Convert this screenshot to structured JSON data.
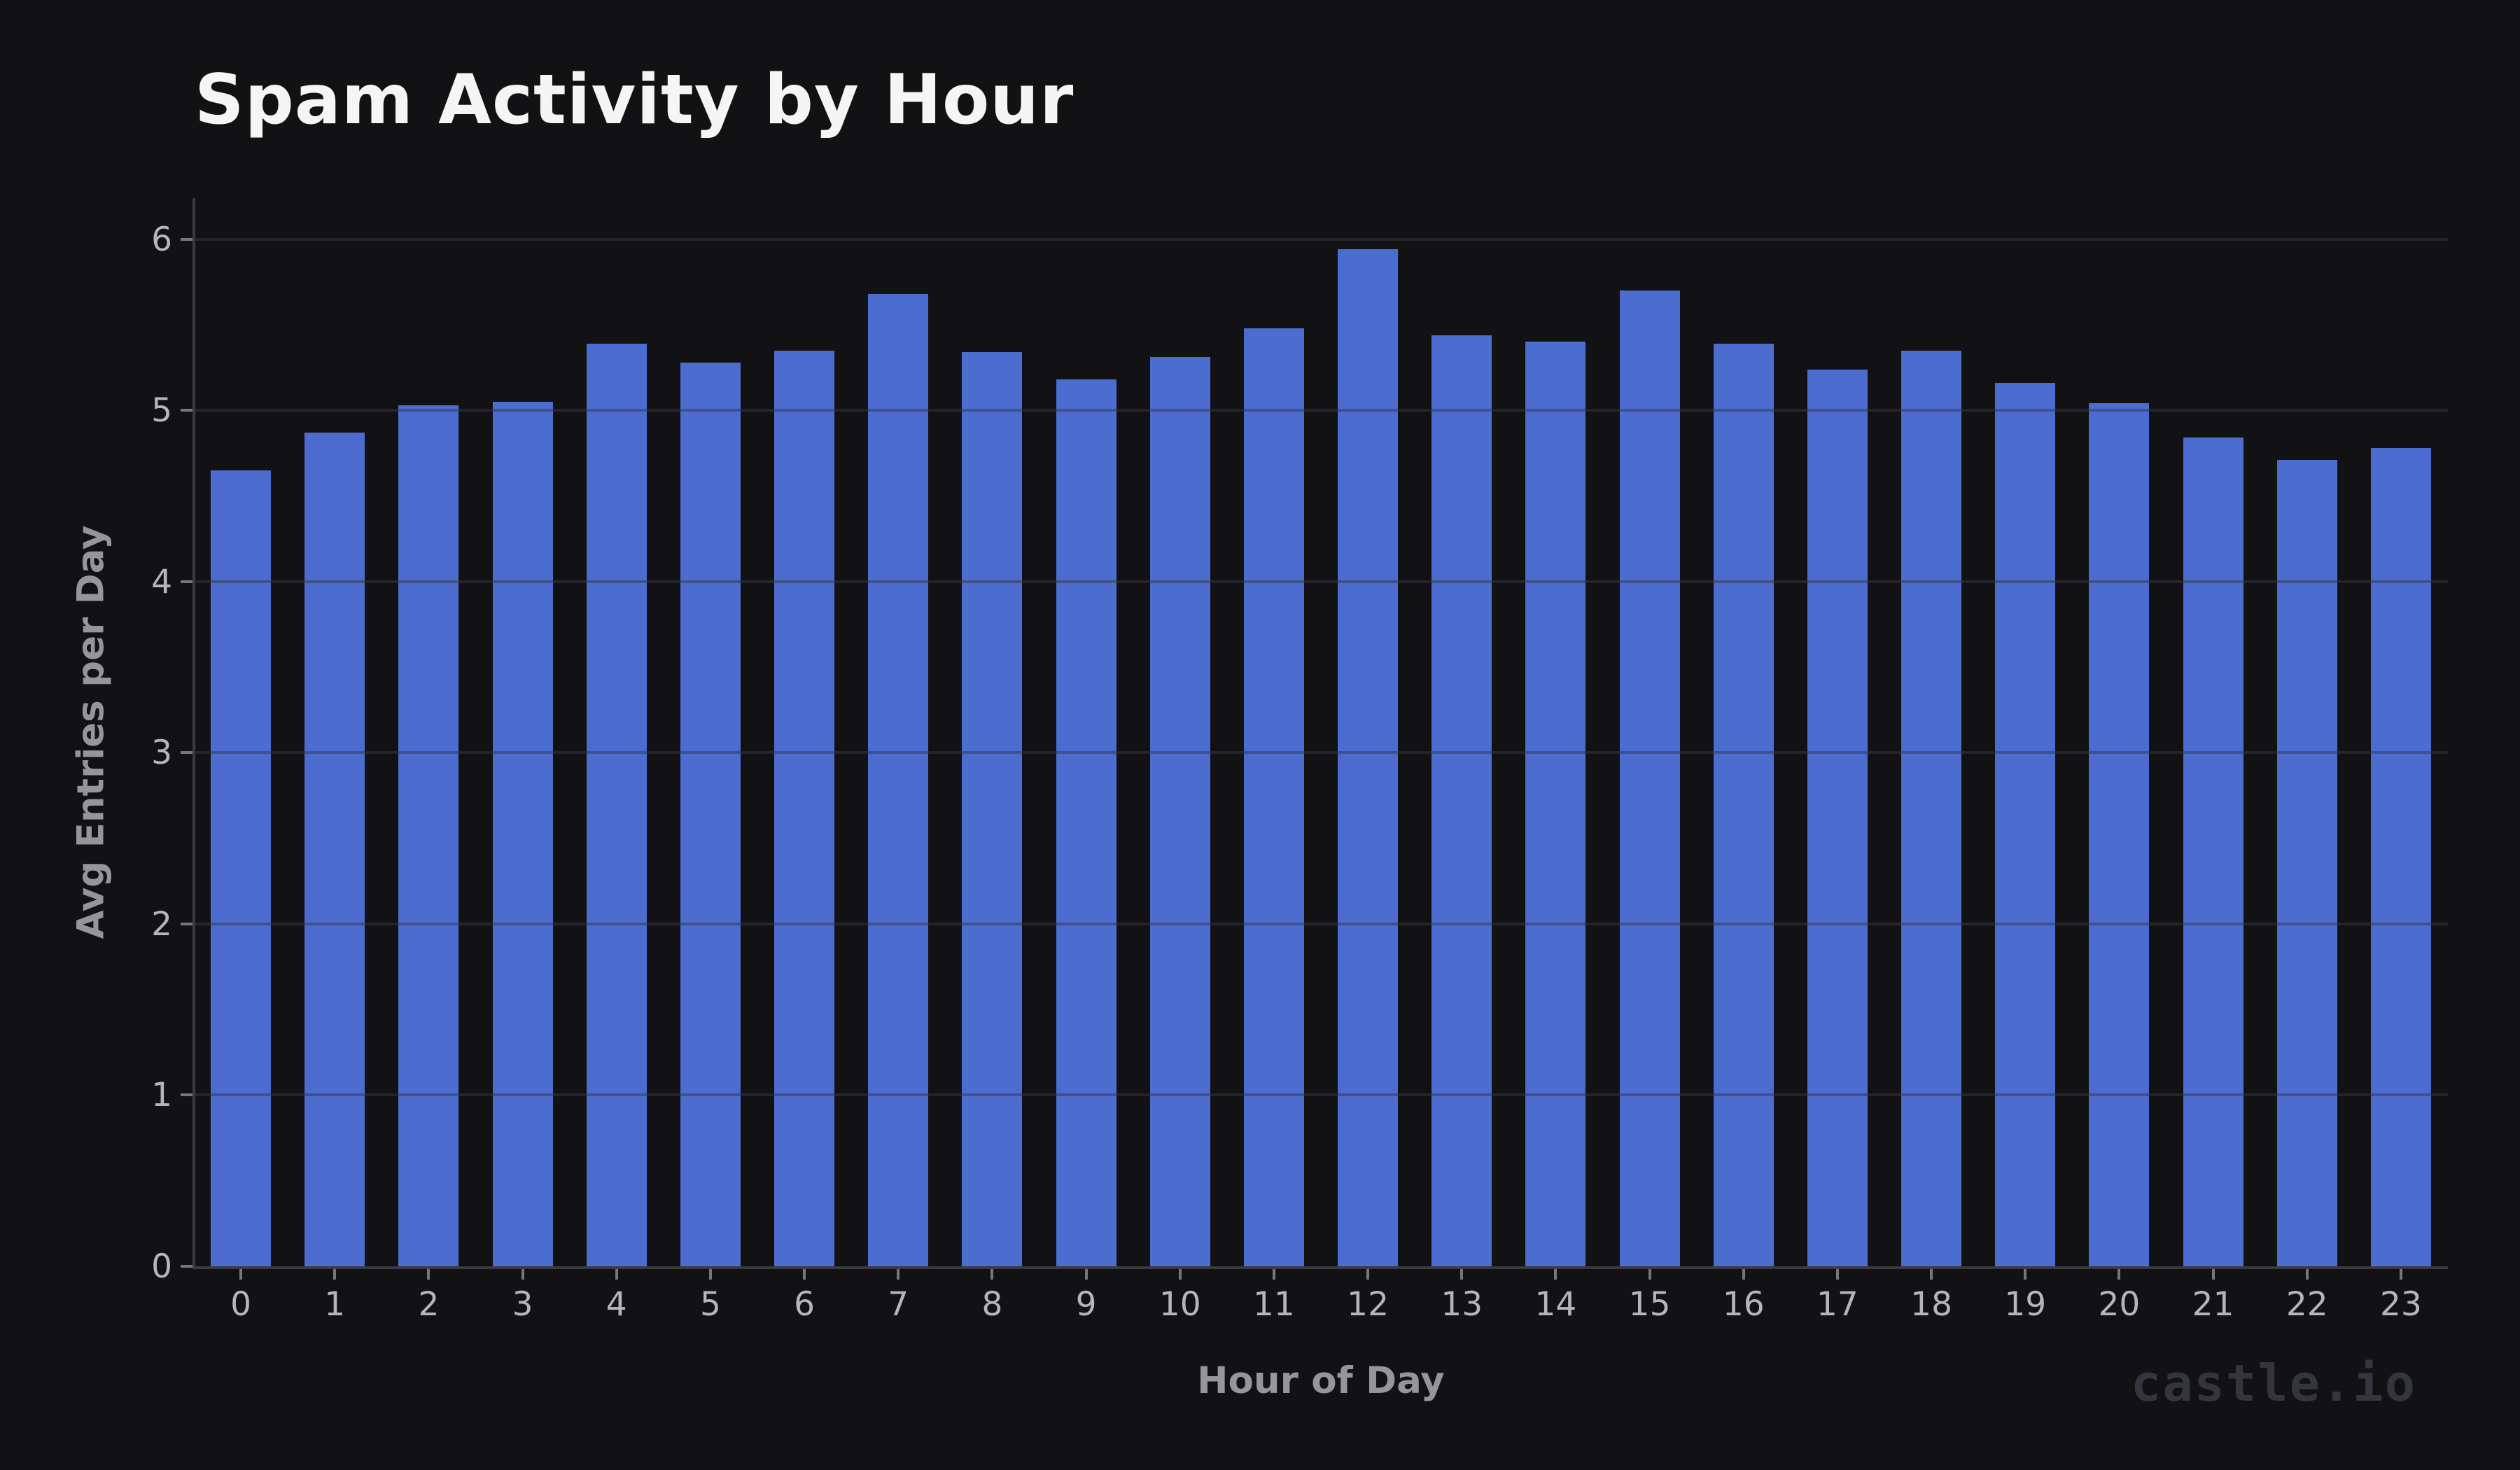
{
  "title": "Spam Activity by Hour",
  "watermark": "castle.io",
  "chart_data": {
    "type": "bar",
    "title": "Spam Activity by Hour",
    "xlabel": "Hour of Day",
    "ylabel": "Avg Entries per Day",
    "categories": [
      "0",
      "1",
      "2",
      "3",
      "4",
      "5",
      "6",
      "7",
      "8",
      "9",
      "10",
      "11",
      "12",
      "13",
      "14",
      "15",
      "16",
      "17",
      "18",
      "19",
      "20",
      "21",
      "22",
      "23"
    ],
    "values": [
      4.65,
      4.87,
      5.03,
      5.05,
      5.39,
      5.28,
      5.35,
      5.68,
      5.34,
      5.18,
      5.31,
      5.48,
      5.94,
      5.44,
      5.4,
      5.7,
      5.39,
      5.24,
      5.35,
      5.16,
      5.04,
      4.84,
      4.71,
      4.78
    ],
    "yticks": [
      0,
      1,
      2,
      3,
      4,
      5,
      6
    ],
    "ylim": [
      0,
      6.24
    ],
    "grid": true,
    "legend": "none",
    "bar_color": "#4D6CCF",
    "background_color": "#121215",
    "gridline_color": "rgba(54,56,66,0.5)",
    "axis_text_color": "#b4b6b9",
    "label_color": "#94969b",
    "title_color": "#f5f5f6",
    "watermark_color": "#33363c"
  }
}
